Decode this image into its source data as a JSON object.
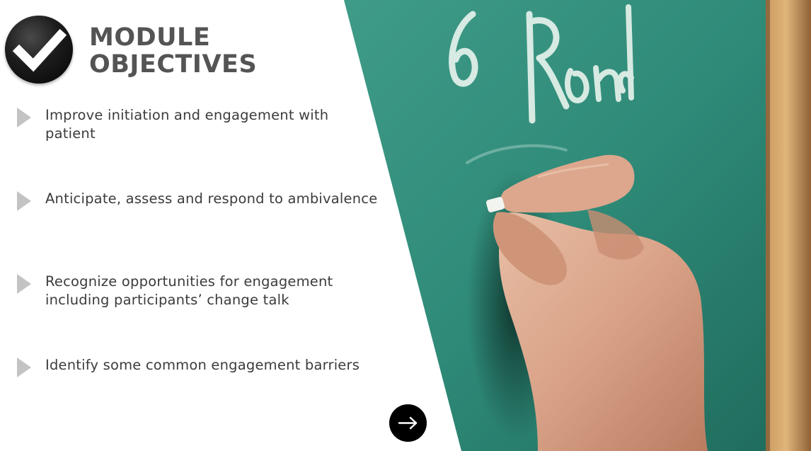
{
  "header": {
    "title_line1": "MODULE",
    "title_line2": "OBJECTIVES",
    "badge_icon": "checkmark-icon"
  },
  "objectives": [
    {
      "icon": "bullet-arrow-icon",
      "text": "Improve initiation and engagement with patient"
    },
    {
      "icon": "bullet-arrow-icon",
      "text": "Anticipate, assess and respond to ambivalence"
    },
    {
      "icon": "bullet-arrow-icon",
      "text": "Recognize opportunities for engagement including participants’ change talk"
    },
    {
      "icon": "bullet-arrow-icon",
      "text": "Identify some common engagement barriers"
    }
  ],
  "navigation": {
    "next_icon": "arrow-right-icon"
  },
  "colors": {
    "title": "#545454",
    "body_text": "#3c3c3c",
    "bullet": "#c3c3c3",
    "chalkboard": "#2f8a78",
    "button": "#000000"
  }
}
